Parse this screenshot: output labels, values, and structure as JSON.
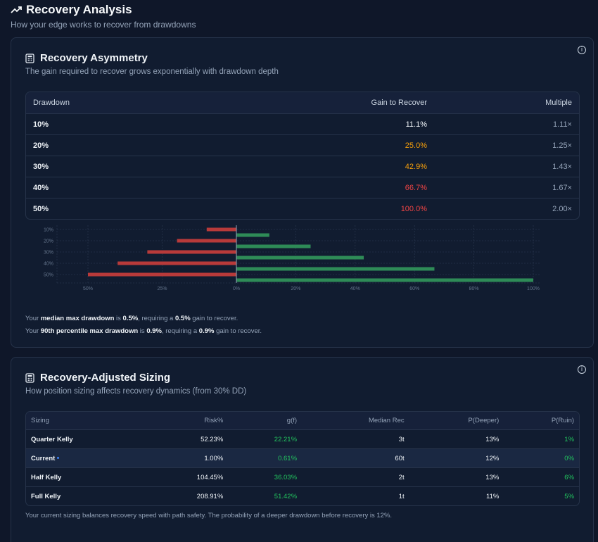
{
  "header": {
    "title": "Recovery Analysis",
    "subtitle": "How your edge works to recover from drawdowns"
  },
  "asymmetry": {
    "title": "Recovery Asymmetry",
    "subtitle": "The gain required to recover grows exponentially with drawdown depth",
    "info": "i",
    "columns": [
      "Drawdown",
      "Gain to Recover",
      "Multiple"
    ],
    "rows": [
      {
        "drawdown": "10%",
        "gain": "11.1%",
        "multiple": "1.11×"
      },
      {
        "drawdown": "20%",
        "gain": "25.0%",
        "multiple": "1.25×"
      },
      {
        "drawdown": "30%",
        "gain": "42.9%",
        "multiple": "1.43×"
      },
      {
        "drawdown": "40%",
        "gain": "66.7%",
        "multiple": "1.67×"
      },
      {
        "drawdown": "50%",
        "gain": "100.0%",
        "multiple": "2.00×"
      }
    ],
    "note1": {
      "pre": "Your ",
      "label": "median max drawdown",
      "mid": " is ",
      "value": "0.5%",
      "mid2": ", requiring a ",
      "gain": "0.5%",
      "post": " gain to recover."
    },
    "note2": {
      "pre": "Your ",
      "label": "90th percentile max drawdown",
      "mid": " is ",
      "value": "0.9%",
      "mid2": ", requiring a ",
      "gain": "0.9%",
      "post": " gain to recover."
    }
  },
  "chart_data": {
    "type": "bar",
    "orientation": "horizontal",
    "categories": [
      "10%",
      "20%",
      "30%",
      "40%",
      "50%"
    ],
    "series": [
      {
        "values": [
          10,
          20,
          30,
          40,
          50
        ],
        "color": "#b83a3a"
      },
      {
        "values": [
          11.1,
          25.0,
          42.9,
          66.7,
          100.0
        ],
        "color": "#2e8b57"
      }
    ],
    "x_left_ticks": [
      "50%",
      "25%",
      "0%"
    ],
    "x_right_ticks": [
      "20%",
      "40%",
      "60%",
      "80%",
      "100%"
    ],
    "left_max": 50,
    "right_max": 100,
    "grid": true
  },
  "sizing": {
    "title": "Recovery-Adjusted Sizing",
    "subtitle": "How position sizing affects recovery dynamics (from 30% DD)",
    "info": "i",
    "columns": [
      "Sizing",
      "Risk%",
      "g(f)",
      "Median Rec",
      "P(Deeper)",
      "P(Ruin)"
    ],
    "rows": [
      {
        "name": "Quarter Kelly",
        "risk": "52.23%",
        "gf": "22.21%",
        "rec": "3t",
        "deeper": "13%",
        "ruin": "1%"
      },
      {
        "name": "Current",
        "risk": "1.00%",
        "gf": "0.61%",
        "rec": "60t",
        "deeper": "12%",
        "ruin": "0%"
      },
      {
        "name": "Half Kelly",
        "risk": "104.45%",
        "gf": "36.03%",
        "rec": "2t",
        "deeper": "13%",
        "ruin": "6%"
      },
      {
        "name": "Full Kelly",
        "risk": "208.91%",
        "gf": "51.42%",
        "rec": "1t",
        "deeper": "11%",
        "ruin": "5%"
      }
    ],
    "footer": "Your current sizing balances recovery speed with path safety. The probability of a deeper drawdown before recovery is 12%."
  }
}
